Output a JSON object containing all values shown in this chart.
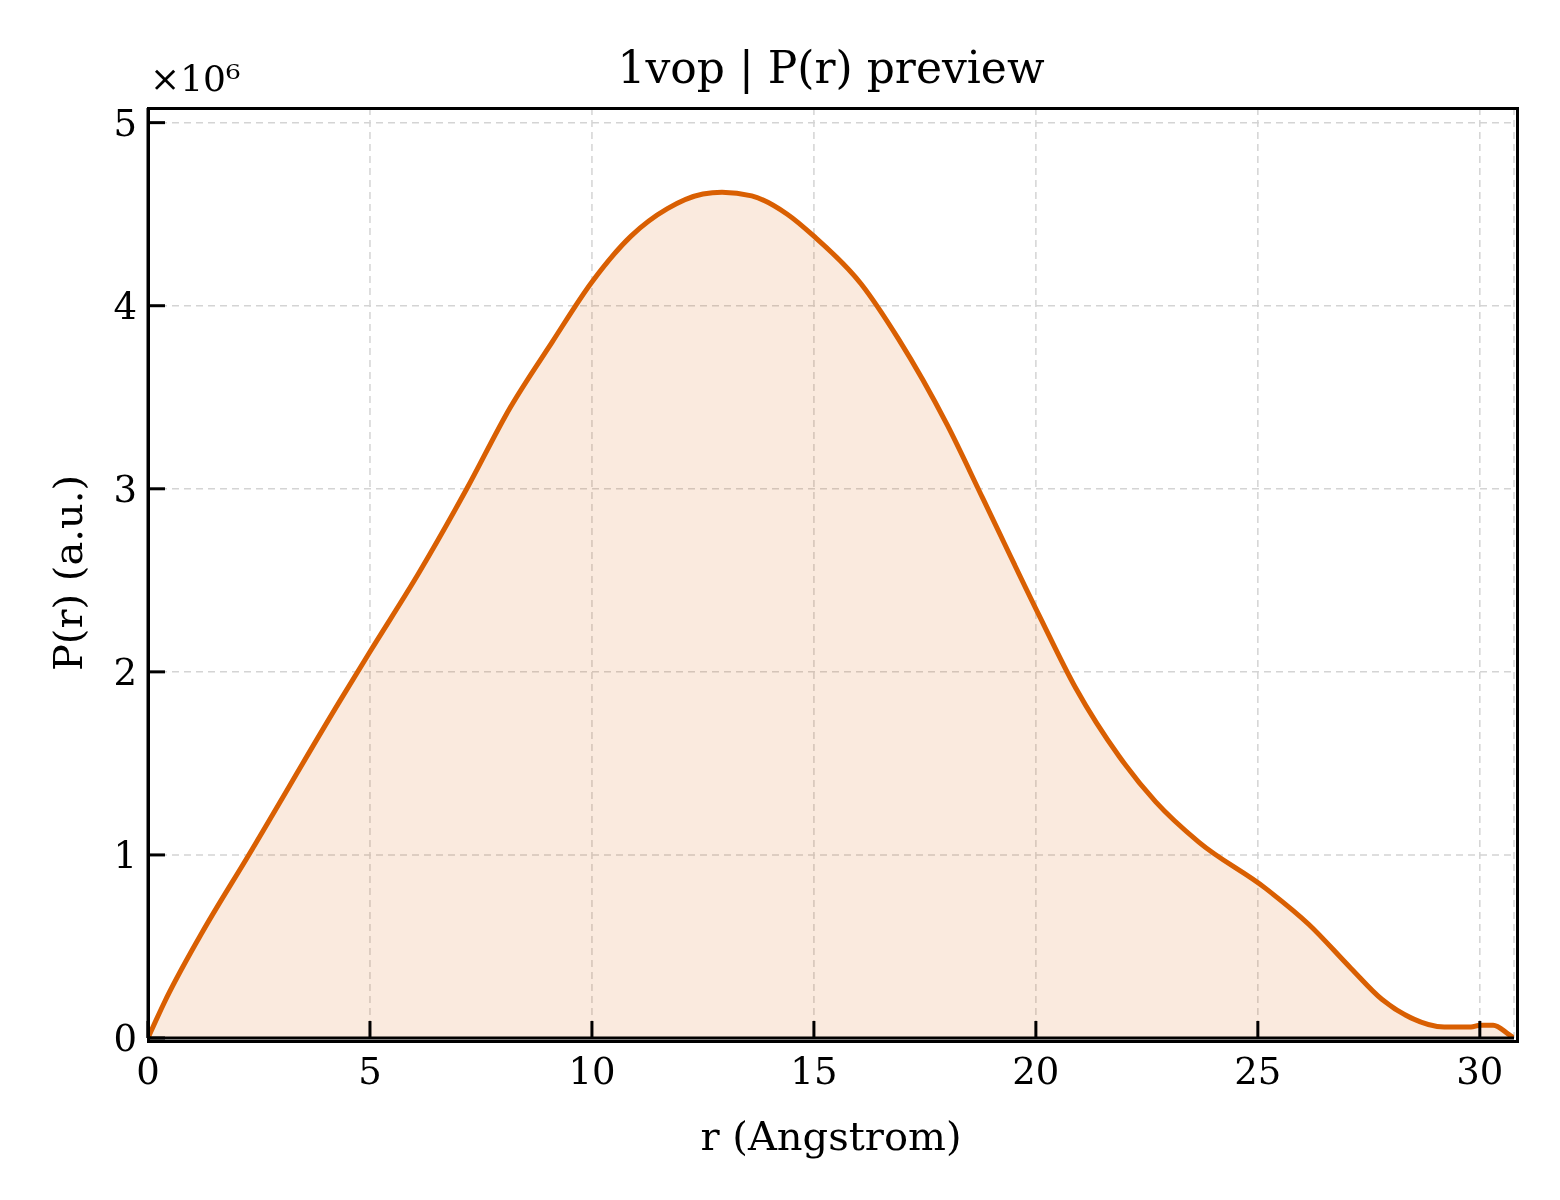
{
  "chart_data": {
    "type": "area",
    "title": "1vop | P(r) preview",
    "xlabel": "r (Angstrom)",
    "ylabel": "P(r) (a.u.)",
    "annotations": [
      "×10⁶"
    ],
    "x": [
      0,
      0.36,
      1.18,
      2.27,
      4.32,
      5.0,
      6.1,
      7.18,
      8.15,
      9.1,
      10.0,
      10.88,
      11.7,
      12.5,
      12.93,
      13.6,
      14.4,
      15.0,
      16.06,
      16.9,
      18.0,
      18.8,
      20.07,
      20.9,
      21.87,
      22.7,
      23.67,
      25.16,
      26.15,
      27.1,
      27.8,
      28.45,
      29.2,
      29.8,
      30.0,
      30.3,
      30.65,
      30.77
    ],
    "series": [
      {
        "color": "#d95f02",
        "values": [
          0,
          0.19,
          0.56,
          1.0,
          1.84,
          2.11,
          2.54,
          3.0,
          3.44,
          3.8,
          4.13,
          4.38,
          4.53,
          4.61,
          4.62,
          4.6,
          4.5,
          4.38,
          4.12,
          3.82,
          3.35,
          2.95,
          2.31,
          1.91,
          1.54,
          1.29,
          1.07,
          0.82,
          0.62,
          0.38,
          0.21,
          0.11,
          0.06,
          0.06,
          0.07,
          0.07,
          0.02,
          0
        ]
      }
    ],
    "xlim": [
      0,
      30.77
    ],
    "ylim": [
      0,
      5.08
    ],
    "xticks": [
      0,
      5,
      10,
      15,
      20,
      25,
      30
    ],
    "yticks": [
      0,
      1,
      2,
      3,
      4,
      5
    ],
    "grid": true
  }
}
